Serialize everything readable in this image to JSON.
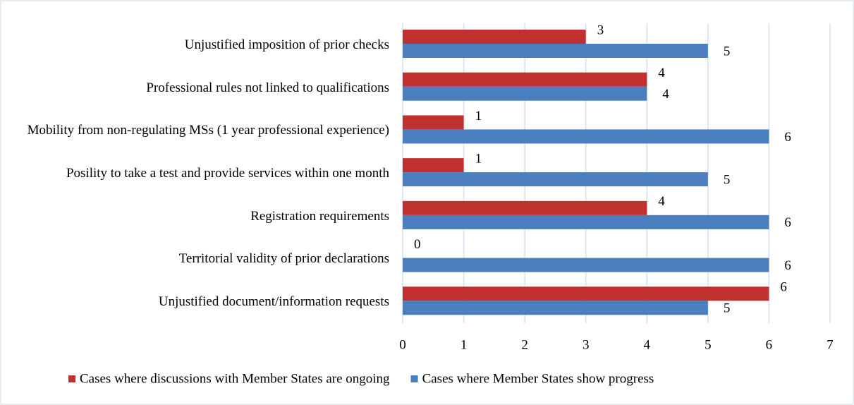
{
  "chart_data": {
    "type": "hbar",
    "categories": [
      "Unjustified imposition of prior checks",
      "Professional rules not linked to qualifications",
      "Mobility from non-regulating MSs (1 year professional experience)",
      "Posility to take a test and provide services within one month",
      "Registration requirements",
      "Territorial validity of prior declarations",
      "Unjustified document/information requests"
    ],
    "series": [
      {
        "name": "Cases where discussions with Member States are ongoing",
        "color": "#c0302e",
        "values": [
          3,
          4,
          1,
          1,
          4,
          0,
          6
        ]
      },
      {
        "name": "Cases where Member States show progress",
        "color": "#4a7ebf",
        "values": [
          5,
          4,
          6,
          5,
          6,
          6,
          5
        ]
      }
    ],
    "xlim": [
      0,
      7
    ],
    "xticks": [
      0,
      1,
      2,
      3,
      4,
      5,
      6,
      7
    ],
    "grid": true
  }
}
